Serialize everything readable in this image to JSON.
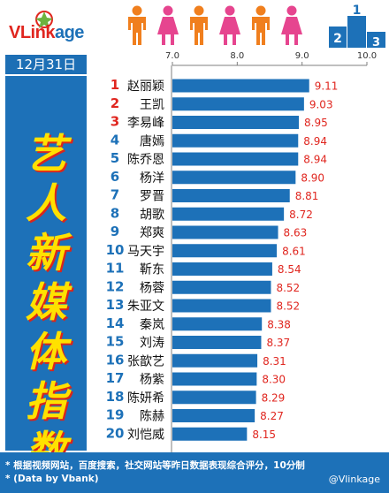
{
  "brand": {
    "logo_text": "VLinkage"
  },
  "date": "12月31日",
  "side_title": [
    "艺",
    "人",
    "新",
    "媒",
    "体",
    "指",
    "数"
  ],
  "colors": {
    "bar": "#1d71b8",
    "value": "#e0261f",
    "rank": "#e0261f",
    "rank_default": "#1d71b8",
    "title": "#ffe100",
    "panel": "#1d71b8"
  },
  "footer": {
    "note1": "* 根据视频网站，百度搜索，社交网站等昨日数据表现综合评分，10分制",
    "note2": "* (Data by Vbank)",
    "credit": "@Vlinkage"
  },
  "chart_data": {
    "type": "bar",
    "orientation": "horizontal",
    "x_ticks": [
      "7.0",
      "8.0",
      "9.0",
      "10.0"
    ],
    "xlim": [
      7.0,
      10.0
    ],
    "grid": false,
    "ranks": [
      "1",
      "2",
      "3",
      "4",
      "5",
      "6",
      "7",
      "8",
      "9",
      "10",
      "11",
      "12",
      "13",
      "14",
      "15",
      "16",
      "17",
      "18",
      "19",
      "20"
    ],
    "categories": [
      "赵丽颖",
      "王凯",
      "李易峰",
      "唐嫣",
      "陈乔恩",
      "杨洋",
      "罗晋",
      "胡歌",
      "郑爽",
      "马天宇",
      "靳东",
      "杨蓉",
      "朱亚文",
      "秦岚",
      "刘涛",
      "张歆艺",
      "杨紫",
      "陈妍希",
      "陈赫",
      "刘恺威"
    ],
    "values": [
      9.11,
      9.03,
      8.95,
      8.94,
      8.94,
      8.9,
      8.81,
      8.72,
      8.63,
      8.61,
      8.54,
      8.52,
      8.52,
      8.38,
      8.37,
      8.31,
      8.3,
      8.29,
      8.27,
      8.15
    ],
    "value_labels": [
      "9.11",
      "9.03",
      "8.95",
      "8.94",
      "8.94",
      "8.90",
      "8.81",
      "8.72",
      "8.63",
      "8.61",
      "8.54",
      "8.52",
      "8.52",
      "8.38",
      "8.37",
      "8.31",
      "8.30",
      "8.29",
      "8.27",
      "8.15"
    ]
  }
}
